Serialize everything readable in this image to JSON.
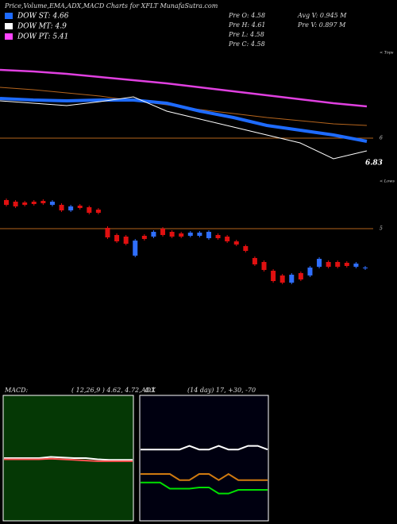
{
  "header": {
    "title": "Price,Volume,EMA,ADX,MACD Charts for XFLT MunafaSutra.com",
    "dow": [
      {
        "label": "DOW ST: 4.66",
        "color": "#1e6bff"
      },
      {
        "label": "DOW MT: 4.9",
        "color": "#ffffff"
      },
      {
        "label": "DOW PT: 5.41",
        "color": "#ff44ff"
      }
    ],
    "pre": [
      "Pre  O: 4.58",
      "Pre  H: 4.61",
      "Pre  L: 4.58",
      "Pre  C: 4.58"
    ],
    "volume": [
      "Avg V: 0.945 M",
      "Pre  V: 0.897 M"
    ]
  },
  "price_panel": {
    "type": "line",
    "ylim": [
      5,
      8
    ],
    "yticks": [
      6
    ],
    "last_label": "6.83",
    "side_label": "< Tops",
    "series": [
      {
        "color": "#e040e0",
        "width": 2.5,
        "values": [
          7.72,
          7.68,
          7.62,
          7.54,
          7.46,
          7.38,
          7.28,
          7.18,
          7.08,
          6.98,
          6.88,
          6.8
        ]
      },
      {
        "color": "#b5651d",
        "width": 1,
        "values": [
          7.28,
          7.22,
          7.14,
          7.06,
          6.94,
          6.84,
          6.72,
          6.62,
          6.52,
          6.44,
          6.36,
          6.32
        ]
      },
      {
        "color": "#1e6bff",
        "width": 4,
        "values": [
          7.0,
          6.96,
          6.94,
          6.96,
          6.96,
          6.88,
          6.68,
          6.52,
          6.32,
          6.2,
          6.08,
          5.92
        ]
      },
      {
        "color": "#ffffff",
        "width": 1,
        "values": [
          6.94,
          6.88,
          6.82,
          6.92,
          7.04,
          6.68,
          6.48,
          6.28,
          6.08,
          5.88,
          5.48,
          5.68
        ]
      }
    ]
  },
  "candle_panel": {
    "type": "candlestick",
    "ylim": [
      4.2,
      5.5
    ],
    "yticks": [
      5
    ],
    "side_label": "< Lows",
    "up_color": "#2f6fff",
    "down_color": "#e01010",
    "open": [
      5.36,
      5.34,
      5.33,
      5.34,
      5.35,
      5.3,
      5.3,
      5.23,
      5.29,
      5.27,
      5.24,
      5.01,
      4.92,
      4.9,
      4.66,
      4.91,
      4.9,
      5.0,
      4.96,
      4.94,
      4.91,
      4.91,
      4.88,
      4.92,
      4.9,
      4.84,
      4.78,
      4.63,
      4.58,
      4.47,
      4.41,
      4.32,
      4.44,
      4.41,
      4.52,
      4.58,
      4.58,
      4.57,
      4.52,
      4.5
    ],
    "close": [
      5.3,
      5.28,
      5.3,
      5.31,
      5.32,
      5.34,
      5.23,
      5.28,
      5.26,
      5.2,
      5.2,
      4.89,
      4.84,
      4.81,
      4.85,
      4.87,
      4.96,
      4.92,
      4.9,
      4.9,
      4.95,
      4.95,
      4.96,
      4.88,
      4.84,
      4.8,
      4.72,
      4.55,
      4.48,
      4.34,
      4.32,
      4.42,
      4.36,
      4.51,
      4.62,
      4.52,
      4.52,
      4.53,
      4.56,
      4.51
    ]
  },
  "macd_panel": {
    "type": "line",
    "label": "MACD:",
    "params": "( 12,26,9 ) 4.62, 4.72, -0.1",
    "ylim": [
      -1,
      1
    ],
    "background": "#053805",
    "series": [
      {
        "color": "#ffffff",
        "values": [
          0,
          0,
          0,
          0,
          0.02,
          0.01,
          0,
          0,
          -0.02,
          -0.03,
          -0.03,
          -0.03
        ]
      },
      {
        "color": "#ff5050",
        "values": [
          -0.02,
          -0.02,
          -0.02,
          -0.02,
          -0.01,
          -0.02,
          -0.03,
          -0.04,
          -0.05,
          -0.05,
          -0.05,
          -0.05
        ]
      }
    ]
  },
  "adx_panel": {
    "type": "line",
    "label": "ADX",
    "params": "(14 day) 17, +30, -70",
    "ylim": [
      0,
      100
    ],
    "background": "#000010",
    "series": [
      {
        "color": "#ffffff",
        "values": [
          57,
          57,
          57,
          57,
          57,
          60,
          57,
          57,
          60,
          57,
          57,
          60,
          60,
          57
        ]
      },
      {
        "color": "#d07a10",
        "values": [
          37,
          37,
          37,
          37,
          32,
          32,
          37,
          37,
          32,
          37,
          32,
          32,
          32,
          32
        ]
      },
      {
        "color": "#00e000",
        "values": [
          30,
          30,
          30,
          25,
          25,
          25,
          26,
          26,
          21,
          21,
          24,
          24,
          24,
          24
        ]
      }
    ]
  }
}
